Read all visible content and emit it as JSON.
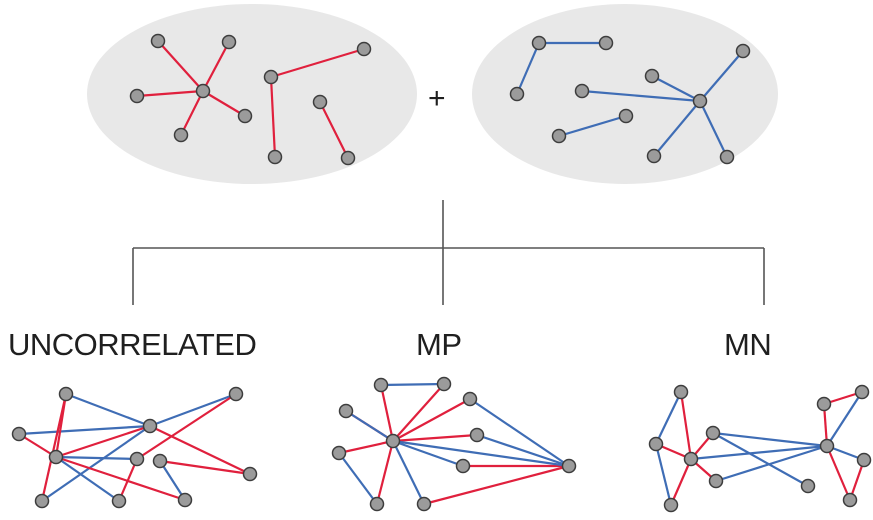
{
  "labels": {
    "plus": "+",
    "uncorrelated": "UNCORRELATED",
    "mp": "MP",
    "mn": "MN"
  },
  "colors": {
    "background": "#ffffff",
    "layer_bubble": "#e8e8e8",
    "red_edge": "#e0203d",
    "blue_edge": "#3f6db5",
    "node_fill": "#9b9b9b",
    "node_stroke": "#3d3d3d",
    "connector": "#555555"
  }
}
